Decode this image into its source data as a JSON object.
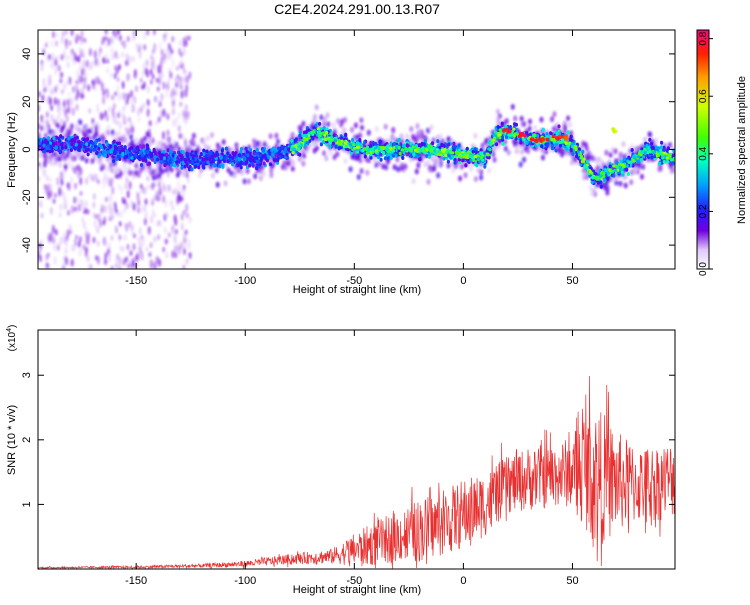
{
  "chart_data": [
    {
      "type": "heatmap",
      "title": "C2E4.2024.291.00.13.R07",
      "xlabel": "Height of straight line (km)",
      "ylabel": "Frequency (Hz)",
      "xlim": [
        -195,
        97
      ],
      "ylim": [
        -50,
        50
      ],
      "x_ticks": [
        -150,
        -100,
        -50,
        0,
        50
      ],
      "y_ticks": [
        -40,
        -20,
        0,
        20,
        40
      ],
      "colorbar": {
        "label": "Normalized spectral amplitude",
        "range": [
          0,
          0.83
        ],
        "ticks": [
          0.0,
          0.2,
          0.4,
          0.6,
          0.8
        ]
      },
      "ridge": {
        "description_points_x": [
          -195,
          -175,
          -150,
          -125,
          -100,
          -85,
          -75,
          -68,
          -60,
          -45,
          -30,
          -15,
          0,
          10,
          15,
          20,
          25,
          35,
          45,
          50,
          55,
          60,
          65,
          75,
          85,
          97
        ],
        "description_points_y": [
          2,
          2,
          -2,
          -4,
          -4,
          -2,
          2,
          8,
          4,
          0,
          0,
          0,
          -2,
          -4,
          6,
          8,
          6,
          4,
          4,
          2,
          -4,
          -12,
          -10,
          -6,
          0,
          -4
        ],
        "hot_x": [
          20,
          27,
          33,
          37,
          43,
          46,
          68
        ],
        "hot_y": [
          8,
          6,
          4,
          4,
          5,
          5,
          8
        ],
        "hot_amp": [
          0.8,
          0.82,
          0.8,
          0.78,
          0.8,
          0.75,
          0.6
        ]
      },
      "grid": false
    },
    {
      "type": "line",
      "xlabel": "Height of straight line (km)",
      "ylabel": "SNR (10 * v/v)",
      "y_multiplier_label": "(x10",
      "y_multiplier_exp": "4",
      "y_multiplier_close": ")",
      "xlim": [
        -195,
        97
      ],
      "ylim": [
        0,
        3.7
      ],
      "x_ticks": [
        -150,
        -100,
        -50,
        0,
        50
      ],
      "y_ticks": [
        1,
        2,
        3
      ],
      "series": [
        {
          "color": "#e83030",
          "envelope_x": [
            -195,
            -150,
            -120,
            -100,
            -80,
            -60,
            -50,
            -40,
            -30,
            -20,
            -10,
            0,
            10,
            20,
            30,
            40,
            50,
            55,
            60,
            65,
            70,
            80,
            90,
            97
          ],
          "envelope_mean": [
            0.02,
            0.03,
            0.05,
            0.08,
            0.15,
            0.2,
            0.3,
            0.4,
            0.5,
            0.6,
            0.7,
            0.85,
            1.0,
            1.3,
            1.4,
            1.45,
            1.5,
            1.6,
            1.45,
            1.4,
            1.35,
            1.3,
            1.35,
            1.4
          ],
          "envelope_spread": [
            0.01,
            0.02,
            0.03,
            0.05,
            0.08,
            0.12,
            0.25,
            0.35,
            0.4,
            0.5,
            0.5,
            0.55,
            0.5,
            0.45,
            0.5,
            0.5,
            0.55,
            0.9,
            1.1,
            1.0,
            0.8,
            0.6,
            0.6,
            0.6
          ]
        }
      ],
      "grid": false
    }
  ]
}
